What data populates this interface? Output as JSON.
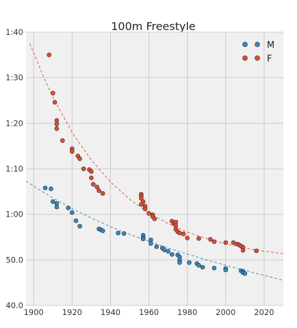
{
  "chart_data": {
    "type": "scatter",
    "title": "100m Freestyle",
    "xlabel": "",
    "ylabel": "",
    "xlim": [
      1896,
      2030
    ],
    "ylim": [
      40,
      100
    ],
    "grid": true,
    "legend_position": "top-right",
    "x_ticks": [
      1900,
      1920,
      1940,
      1960,
      1980,
      2000,
      2020
    ],
    "x_tick_labels": [
      "1900",
      "1920",
      "1940",
      "1960",
      "1980",
      "2000",
      "2020"
    ],
    "y_ticks": [
      40,
      50,
      60,
      70,
      80,
      90,
      100
    ],
    "y_tick_labels": [
      "40.0",
      "50.0",
      "1:00",
      "1:10",
      "1:20",
      "1:30",
      "1:40"
    ],
    "series": [
      {
        "name": "M",
        "color": "#348abd",
        "points": [
          [
            1906,
            65.8
          ],
          [
            1909,
            65.6
          ],
          [
            1910,
            62.8
          ],
          [
            1912,
            62.4
          ],
          [
            1912,
            61.6
          ],
          [
            1918,
            61.4
          ],
          [
            1920,
            60.4
          ],
          [
            1922,
            58.6
          ],
          [
            1924,
            57.4
          ],
          [
            1934,
            56.8
          ],
          [
            1935,
            56.6
          ],
          [
            1936,
            56.4
          ],
          [
            1944,
            55.9
          ],
          [
            1947,
            55.8
          ],
          [
            1957,
            55.4
          ],
          [
            1957,
            54.8
          ],
          [
            1957,
            54.6
          ],
          [
            1961,
            54.4
          ],
          [
            1961,
            53.6
          ],
          [
            1964,
            52.9
          ],
          [
            1967,
            52.6
          ],
          [
            1968,
            52.2
          ],
          [
            1970,
            51.9
          ],
          [
            1972,
            51.2
          ],
          [
            1975,
            51.1
          ],
          [
            1976,
            50.6
          ],
          [
            1976,
            49.9
          ],
          [
            1976,
            49.4
          ],
          [
            1981,
            49.4
          ],
          [
            1985,
            49.2
          ],
          [
            1986,
            48.8
          ],
          [
            1988,
            48.4
          ],
          [
            1994,
            48.2
          ],
          [
            2000,
            48.1
          ],
          [
            2000,
            47.8
          ],
          [
            2008,
            47.6
          ],
          [
            2009,
            47.5
          ],
          [
            2009,
            47.2
          ],
          [
            2010,
            47.0
          ]
        ],
        "trend": [
          [
            1896,
            67.3
          ],
          [
            1900,
            66.2
          ],
          [
            1910,
            63.6
          ],
          [
            1920,
            61.3
          ],
          [
            1930,
            59.2
          ],
          [
            1940,
            57.3
          ],
          [
            1950,
            55.6
          ],
          [
            1960,
            54.1
          ],
          [
            1970,
            52.6
          ],
          [
            1980,
            51.3
          ],
          [
            1990,
            50.0
          ],
          [
            2000,
            48.8
          ],
          [
            2010,
            47.7
          ],
          [
            2020,
            46.6
          ],
          [
            2030,
            45.5
          ]
        ]
      },
      {
        "name": "F",
        "color": "#e24a33",
        "points": [
          [
            1908,
            95.0
          ],
          [
            1910,
            86.6
          ],
          [
            1911,
            84.6
          ],
          [
            1912,
            80.6
          ],
          [
            1912,
            79.8
          ],
          [
            1912,
            78.8
          ],
          [
            1915,
            76.2
          ],
          [
            1920,
            74.4
          ],
          [
            1920,
            73.8
          ],
          [
            1923,
            72.8
          ],
          [
            1924,
            72.2
          ],
          [
            1926,
            70.0
          ],
          [
            1929,
            69.8
          ],
          [
            1930,
            69.4
          ],
          [
            1930,
            68.0
          ],
          [
            1931,
            66.6
          ],
          [
            1933,
            66.0
          ],
          [
            1934,
            65.2
          ],
          [
            1936,
            64.6
          ],
          [
            1956,
            64.4
          ],
          [
            1956,
            64.0
          ],
          [
            1956,
            63.5
          ],
          [
            1957,
            62.8
          ],
          [
            1956,
            62.2
          ],
          [
            1958,
            61.8
          ],
          [
            1958,
            61.2
          ],
          [
            1960,
            60.2
          ],
          [
            1962,
            59.9
          ],
          [
            1962,
            59.5
          ],
          [
            1963,
            59.0
          ],
          [
            1972,
            58.5
          ],
          [
            1973,
            58.0
          ],
          [
            1974,
            58.3
          ],
          [
            1974,
            57.5
          ],
          [
            1974,
            56.7
          ],
          [
            1975,
            56.2
          ],
          [
            1976,
            55.9
          ],
          [
            1978,
            55.7
          ],
          [
            1980,
            54.8
          ],
          [
            1986,
            54.7
          ],
          [
            1992,
            54.5
          ],
          [
            1994,
            54.0
          ],
          [
            2000,
            53.8
          ],
          [
            2004,
            53.8
          ],
          [
            2006,
            53.5
          ],
          [
            2007,
            53.3
          ],
          [
            2008,
            53.0
          ],
          [
            2009,
            52.8
          ],
          [
            2009,
            52.1
          ],
          [
            2016,
            52.0
          ]
        ],
        "trend": [
          [
            1898,
            97.5
          ],
          [
            1905,
            90.3
          ],
          [
            1910,
            85.7
          ],
          [
            1920,
            78.0
          ],
          [
            1930,
            71.9
          ],
          [
            1940,
            67.1
          ],
          [
            1950,
            63.3
          ],
          [
            1960,
            60.3
          ],
          [
            1970,
            58.0
          ],
          [
            1980,
            56.1
          ],
          [
            1990,
            54.7
          ],
          [
            2000,
            53.5
          ],
          [
            2010,
            52.6
          ],
          [
            2020,
            51.9
          ],
          [
            2030,
            51.4
          ]
        ]
      }
    ]
  }
}
